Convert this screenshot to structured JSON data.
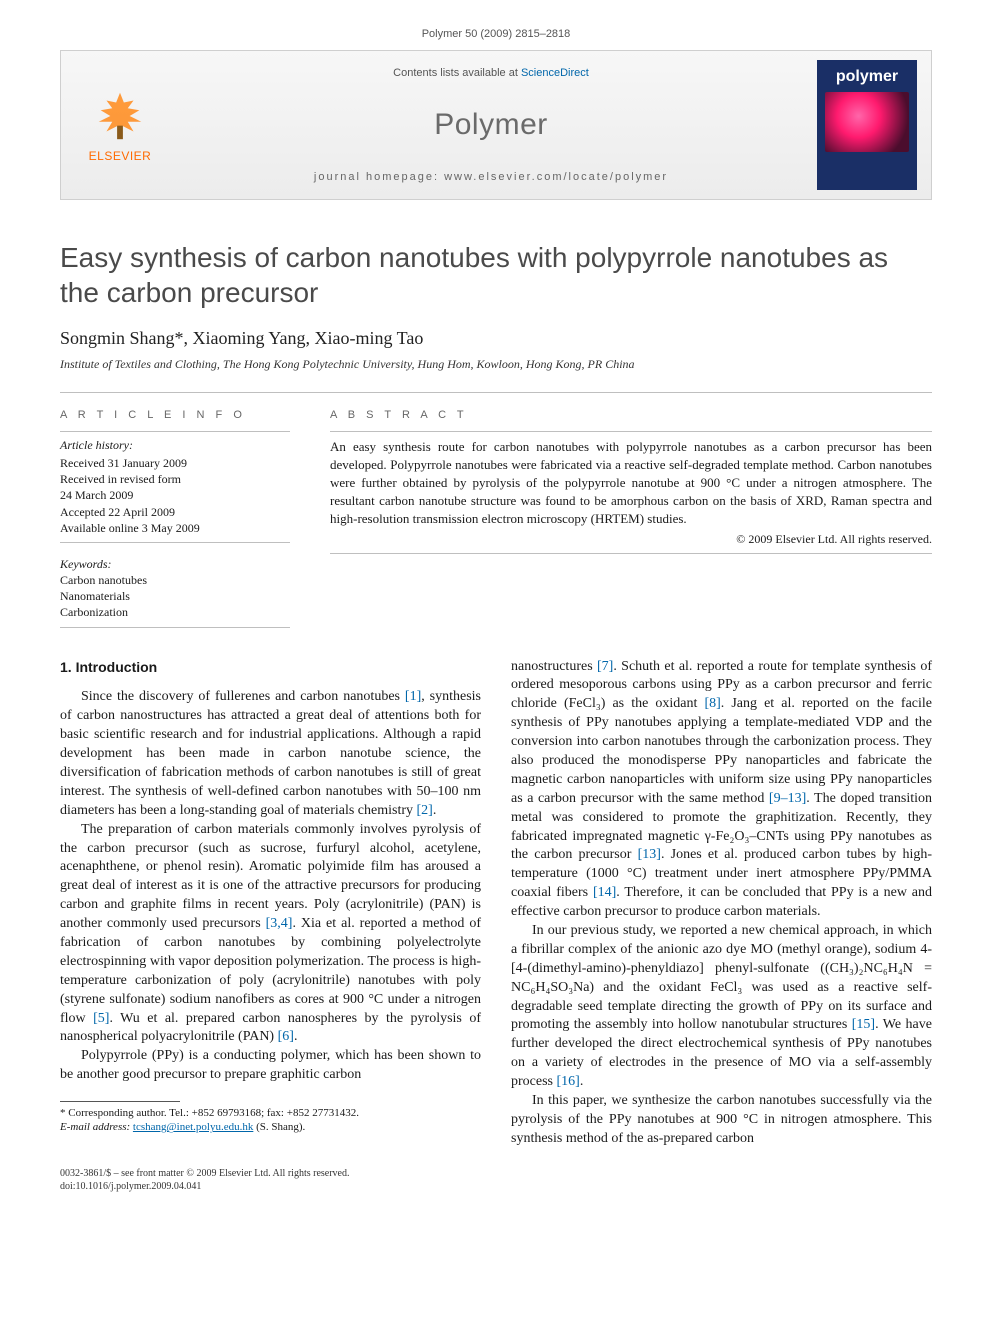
{
  "header": {
    "citation": "Polymer 50 (2009) 2815–2818",
    "contents_prefix": "Contents lists available at ",
    "contents_link": "ScienceDirect",
    "journal": "Polymer",
    "homepage_label": "journal homepage: ",
    "homepage_url": "www.elsevier.com/locate/polymer",
    "publisher": "ELSEVIER",
    "cover_title": "polymer",
    "colors": {
      "banner_bg_top": "#f7f7f7",
      "banner_bg_bottom": "#ececec",
      "banner_border": "#cfcfcf",
      "publisher_orange": "#ff6a00",
      "link_blue": "#0066aa",
      "cover_bg": "#1a2f66",
      "journal_gray": "#6a6a6a"
    }
  },
  "article": {
    "title": "Easy synthesis of carbon nanotubes with polypyrrole nanotubes as the carbon precursor",
    "authors": "Songmin Shang*, Xiaoming Yang, Xiao-ming Tao",
    "affiliation": "Institute of Textiles and Clothing, The Hong Kong Polytechnic University, Hung Hom, Kowloon, Hong Kong, PR China"
  },
  "info": {
    "heading": "A R T I C L E   I N F O",
    "history_label": "Article history:",
    "history": [
      "Received 31 January 2009",
      "Received in revised form",
      "24 March 2009",
      "Accepted 22 April 2009",
      "Available online 3 May 2009"
    ],
    "keywords_label": "Keywords:",
    "keywords": [
      "Carbon nanotubes",
      "Nanomaterials",
      "Carbonization"
    ]
  },
  "abstract": {
    "heading": "A B S T R A C T",
    "text": "An easy synthesis route for carbon nanotubes with polypyrrole nanotubes as a carbon precursor has been developed. Polypyrrole nanotubes were fabricated via a reactive self-degraded template method. Carbon nanotubes were further obtained by pyrolysis of the polypyrrole nanotube at 900 °C under a nitrogen atmosphere. The resultant carbon nanotube structure was found to be amorphous carbon on the basis of XRD, Raman spectra and high-resolution transmission electron microscopy (HRTEM) studies.",
    "copyright": "© 2009 Elsevier Ltd. All rights reserved."
  },
  "body": {
    "section_number": "1.",
    "section_title": "Introduction",
    "p1": "Since the discovery of fullerenes and carbon nanotubes [1], synthesis of carbon nanostructures has attracted a great deal of attentions both for basic scientific research and for industrial applications. Although a rapid development has been made in carbon nanotube science, the diversification of fabrication methods of carbon nanotubes is still of great interest. The synthesis of well-defined carbon nanotubes with 50–100 nm diameters has been a long-standing goal of materials chemistry [2].",
    "p2": "The preparation of carbon materials commonly involves pyrolysis of the carbon precursor (such as sucrose, furfuryl alcohol, acetylene, acenaphthene, or phenol resin). Aromatic polyimide film has aroused a great deal of interest as it is one of the attractive precursors for producing carbon and graphite films in recent years. Poly (acrylonitrile) (PAN) is another commonly used precursors [3,4]. Xia et al. reported a method of fabrication of carbon nanotubes by combining polyelectrolyte electrospinning with vapor deposition polymerization. The process is high-temperature carbonization of poly (acrylonitrile) nanotubes with poly (styrene sulfonate) sodium nanofibers as cores at 900 °C under a nitrogen flow [5]. Wu et al. prepared carbon nanospheres by the pyrolysis of nanospherical polyacrylonitrile (PAN) [6].",
    "p3": "Polypyrrole (PPy) is a conducting polymer, which has been shown to be another good precursor to prepare graphitic carbon",
    "p4": "nanostructures [7]. Schuth et al. reported a route for template synthesis of ordered mesoporous carbons using PPy as a carbon precursor and ferric chloride (FeCl₃) as the oxidant [8]. Jang et al. reported on the facile synthesis of PPy nanotubes applying a template-mediated VDP and the conversion into carbon nanotubes through the carbonization process. They also produced the monodisperse PPy nanoparticles and fabricate the magnetic carbon nanoparticles with uniform size using PPy nanoparticles as a carbon precursor with the same method [9–13]. The doped transition metal was considered to promote the graphitization. Recently, they fabricated impregnated magnetic γ-Fe₂O₃–CNTs using PPy nanotubes as the carbon precursor [13]. Jones et al. produced carbon tubes by high-temperature (1000 °C) treatment under inert atmosphere PPy/PMMA coaxial fibers [14]. Therefore, it can be concluded that PPy is a new and effective carbon precursor to produce carbon materials.",
    "p5": "In our previous study, we reported a new chemical approach, in which a fibrillar complex of the anionic azo dye MO (methyl orange), sodium 4-[4-(dimethyl-amino)-phenyldiazo] phenyl-sulfonate ((CH₃)₂NC₆H₄N = NC₆H₄SO₃Na) and the oxidant FeCl₃ was used as a reactive self-degradable seed template directing the growth of PPy on its surface and promoting the assembly into hollow nanotubular structures [15]. We have further developed the direct electrochemical synthesis of PPy nanotubes on a variety of electrodes in the presence of MO via a self-assembly process [16].",
    "p6": "In this paper, we synthesize the carbon nanotubes successfully via the pyrolysis of the PPy nanotubes at 900 °C in nitrogen atmosphere. This synthesis method of the as-prepared carbon"
  },
  "footnote": {
    "corr": "* Corresponding author. Tel.: +852 69793168; fax: +852 27731432.",
    "email_label": "E-mail address: ",
    "email": "tcshang@inet.polyu.edu.hk",
    "email_suffix": " (S. Shang)."
  },
  "footer": {
    "issn_line": "0032-3861/$ – see front matter © 2009 Elsevier Ltd. All rights reserved.",
    "doi_line": "doi:10.1016/j.polymer.2009.04.041"
  }
}
